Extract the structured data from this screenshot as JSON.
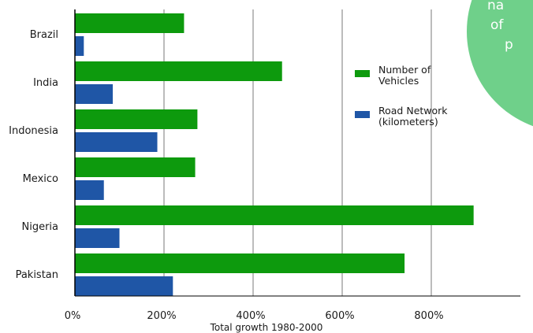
{
  "chart_data": {
    "type": "bar",
    "orientation": "horizontal",
    "categories": [
      "Brazil",
      "India",
      "Indonesia",
      "Mexico",
      "Nigeria",
      "Pakistan"
    ],
    "series": [
      {
        "name": "Number of Vehicles",
        "legend_lines": [
          "Number of",
          "Vehicles"
        ],
        "color": "#0d9a0d",
        "values": [
          245,
          465,
          275,
          270,
          895,
          740
        ]
      },
      {
        "name": "Road Network (kilometers)",
        "legend_lines": [
          "Road Network",
          "(kilometers)"
        ],
        "color": "#1f56a6",
        "values": [
          20,
          85,
          185,
          65,
          100,
          220
        ]
      }
    ],
    "xlim": [
      0,
      1000
    ],
    "xticks": [
      0,
      200,
      400,
      600,
      800
    ],
    "xtick_labels": [
      "0%",
      "200%",
      "400%",
      "600%",
      "800%"
    ],
    "xlabel": "Total growth 1980-2000",
    "ylabel": "",
    "grid": "vertical",
    "legend_position": "right"
  },
  "callout": {
    "color": "#6fd08a",
    "lines": [
      "na",
      "of",
      "p"
    ]
  }
}
